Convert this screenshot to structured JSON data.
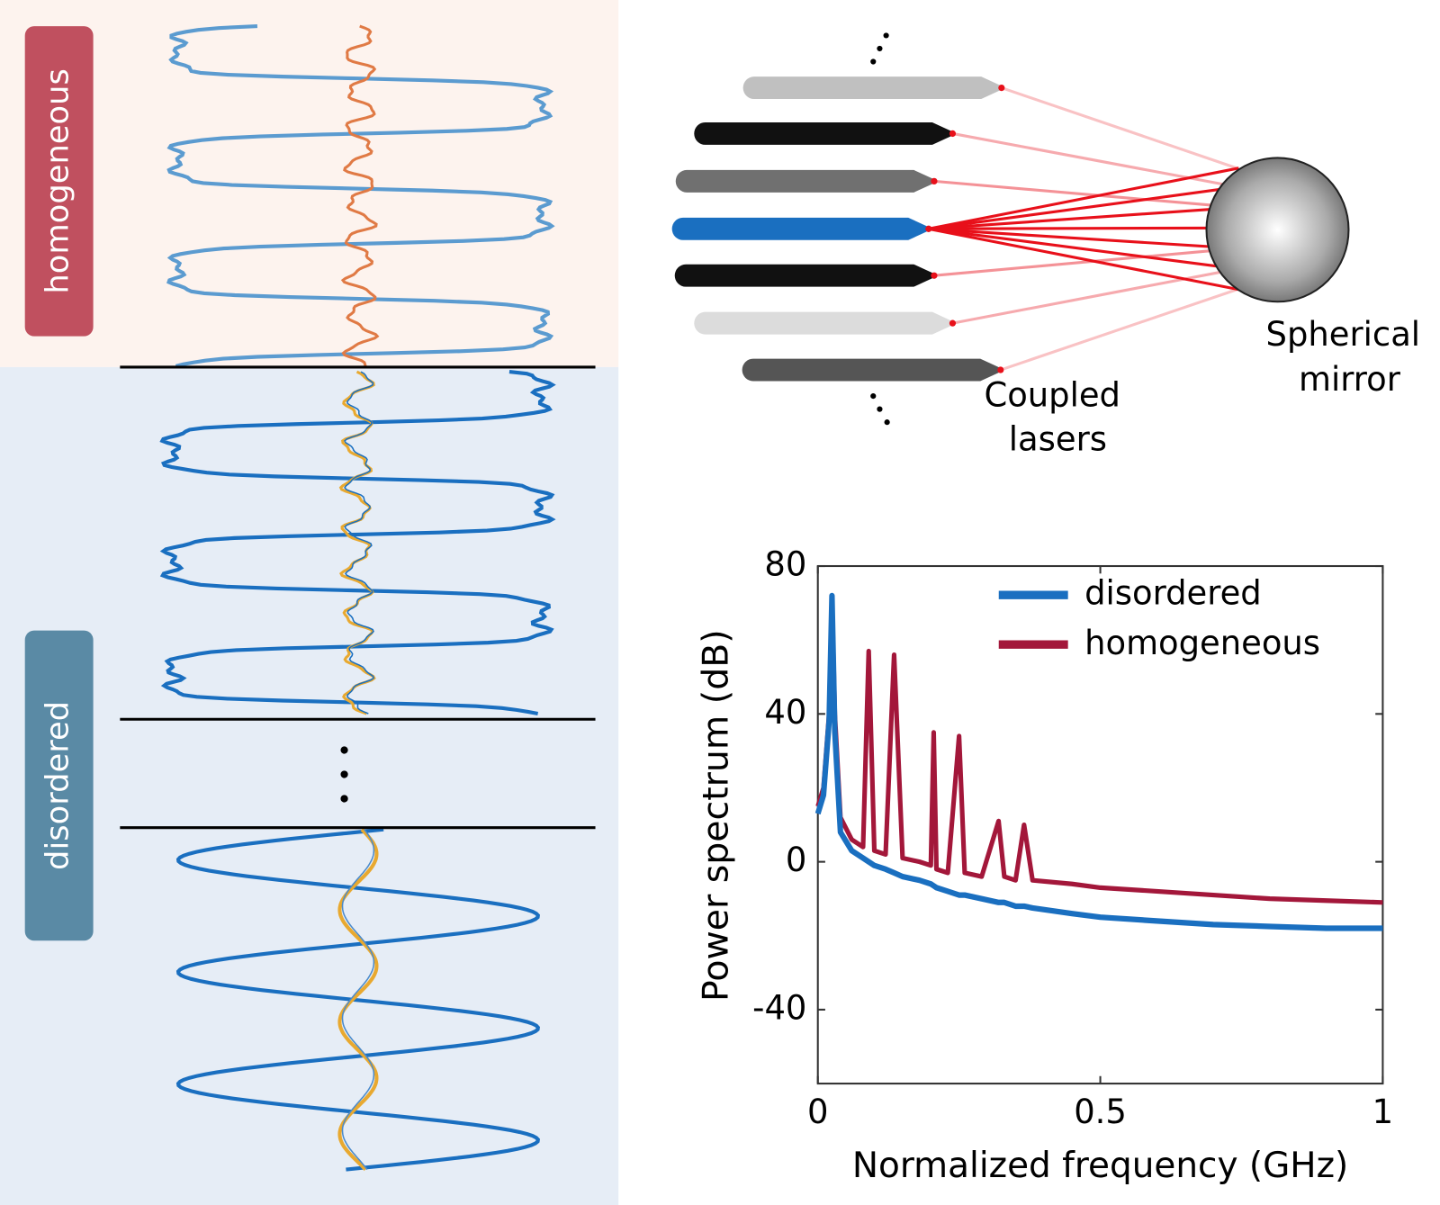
{
  "panel_labels": {
    "top": "homogeneous",
    "bottom": "disordered"
  },
  "diagram": {
    "lasers_label": [
      "Coupled",
      "lasers"
    ],
    "mirror_label": [
      "Spherical",
      "mirror"
    ]
  },
  "chart_data": {
    "type": "line",
    "x_label": "Normalized frequency (GHz)",
    "y_label": "Power spectrum (dB)",
    "x": [
      0,
      0.01,
      0.02,
      0.025,
      0.03,
      0.04,
      0.06,
      0.08,
      0.09,
      0.1,
      0.12,
      0.135,
      0.15,
      0.18,
      0.2,
      0.205,
      0.21,
      0.23,
      0.25,
      0.26,
      0.29,
      0.32,
      0.33,
      0.35,
      0.365,
      0.38,
      0.45,
      0.5,
      0.6,
      0.7,
      0.8,
      0.9,
      1.0
    ],
    "series": [
      {
        "name": "homogeneous",
        "color": "#a3173a",
        "values": [
          15,
          20,
          40,
          72,
          40,
          12,
          6,
          4,
          57,
          3,
          2,
          56,
          1,
          0,
          -1,
          35,
          -2,
          -3,
          34,
          -3,
          -4,
          11,
          -4,
          -5,
          10,
          -5,
          -6,
          -7,
          -8,
          -9,
          -10,
          -10.5,
          -11
        ]
      },
      {
        "name": "disordered",
        "color": "#1a6fc0",
        "values": [
          13,
          18,
          38,
          72,
          35,
          8,
          3,
          1,
          0,
          -1,
          -2,
          -3,
          -4,
          -5,
          -6,
          -6.5,
          -7,
          -8,
          -9,
          -9,
          -10,
          -11,
          -11,
          -12,
          -12,
          -12.5,
          -14,
          -15,
          -16,
          -17,
          -17.5,
          -18,
          -18
        ]
      }
    ],
    "xlim": [
      0,
      1
    ],
    "xticks": [
      0,
      0.5,
      1
    ],
    "ylim": [
      -60,
      80
    ],
    "yticks": [
      -40,
      0,
      40,
      80
    ],
    "legend": "top-right"
  }
}
